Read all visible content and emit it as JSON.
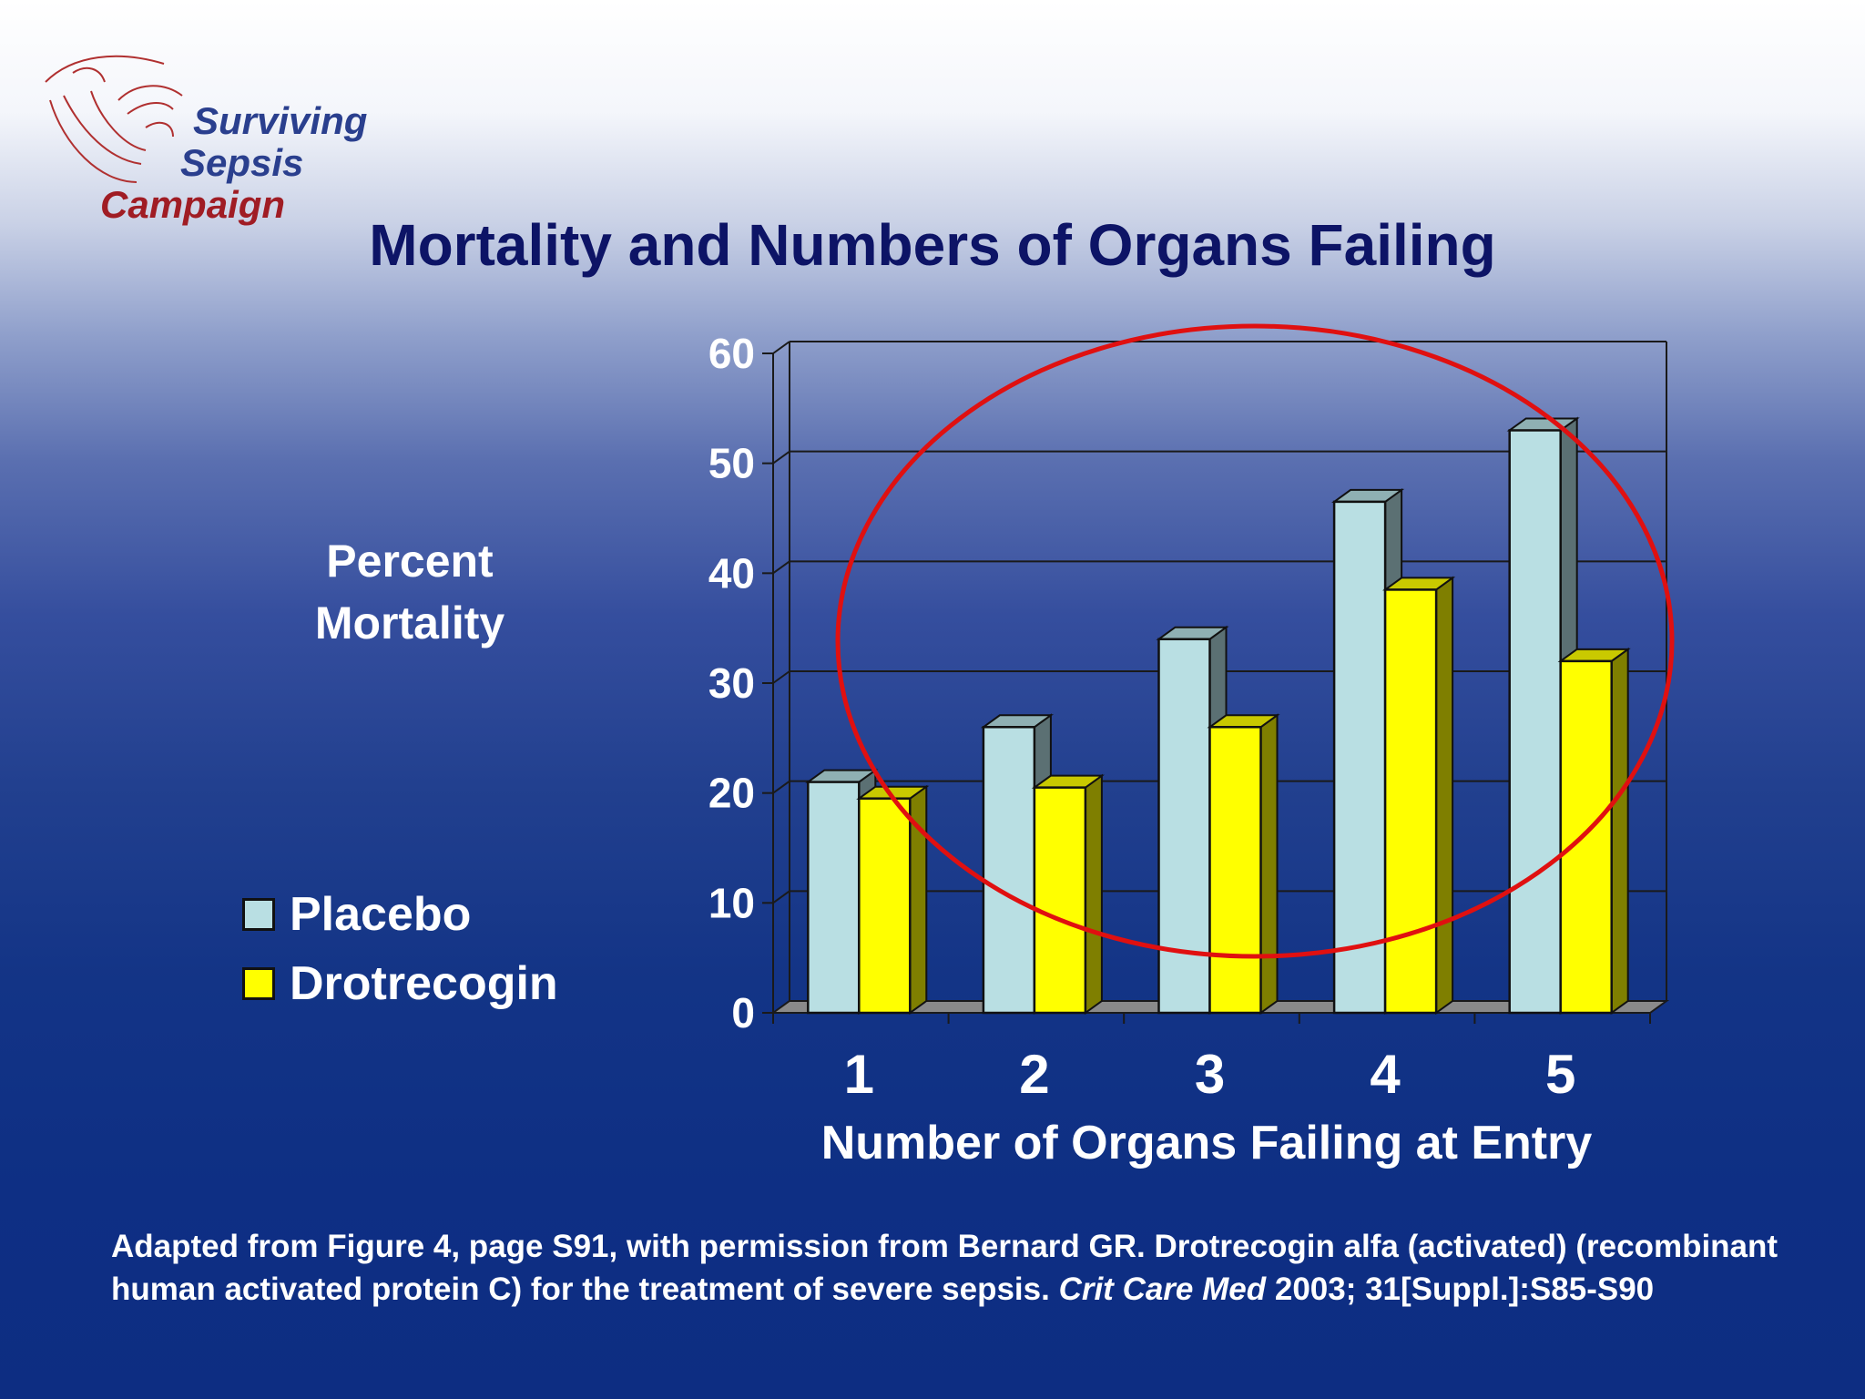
{
  "slide": {
    "title": "Mortality and Numbers of Organs Failing",
    "logo": {
      "line1": "Surviving",
      "line2": "Sepsis",
      "line3": "Campaign"
    },
    "citation": {
      "part1": "Adapted from Figure 4, page S91, with permission from Bernard GR. Drotrecogin alfa (activated) (recombinant human activated protein C) for the treatment of severe sepsis. ",
      "journal": "Crit Care Med",
      "part2": " 2003; 31[Suppl.]:S85-S90"
    }
  },
  "colors": {
    "placebo": "#b9dfe3",
    "drotrecogin": "#ffff00",
    "title": "#0d1466",
    "highlight_ellipse": "#e01010"
  },
  "chart_data": {
    "type": "bar",
    "title": "Mortality and Numbers of Organs Failing",
    "xlabel": "Number of Organs Failing at Entry",
    "ylabel": "Percent Mortality",
    "ylim": [
      0,
      60
    ],
    "yticks": [
      "0",
      "10",
      "20",
      "30",
      "40",
      "50",
      "60"
    ],
    "categories": [
      "1",
      "2",
      "3",
      "4",
      "5"
    ],
    "series": [
      {
        "name": "Placebo",
        "values": [
          21,
          26,
          34,
          46.5,
          53
        ]
      },
      {
        "name": "Drotrecogin",
        "values": [
          19.5,
          20.5,
          26,
          38.5,
          32
        ]
      }
    ],
    "grid": true,
    "legend": "left",
    "style": "3d-clustered-column",
    "annotation": "red ellipse highlighting groups 2-5"
  }
}
